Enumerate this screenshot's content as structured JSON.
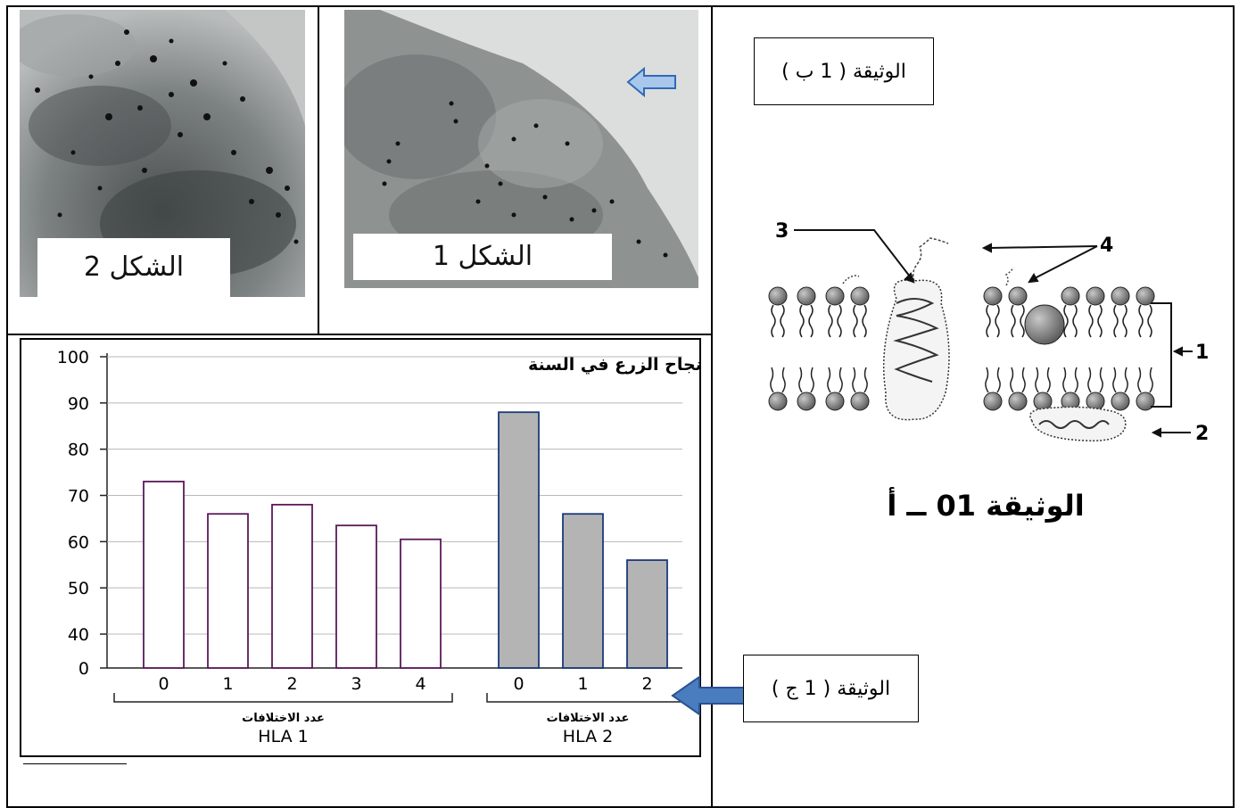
{
  "photos": {
    "fig1_label": "الشكل 1",
    "fig2_label": "الشكل 2"
  },
  "documents": {
    "doc_1b": "الوثيقة ( 1 ب )",
    "doc_1c": "الوثيقة ( 1 ج )",
    "doc_1a": "الوثيقة   01 ــ أ"
  },
  "membrane": {
    "labels": [
      "1",
      "2",
      "3",
      "4"
    ]
  },
  "chart_data": {
    "type": "bar",
    "title": "النسبة المئوية لنجاح الزرع   في السنة",
    "yticks": [
      100,
      90,
      80,
      70,
      60,
      50,
      40,
      0
    ],
    "groups": [
      {
        "name": "HLA 1",
        "axis_label": "عدد الاختلافات",
        "categories": [
          "0",
          "1",
          "2",
          "3",
          "4"
        ],
        "values": [
          73,
          66,
          68,
          63.5,
          60.5
        ],
        "color": "#ffffff",
        "edge_color": "#5a1a5a"
      },
      {
        "name": "HLA 2",
        "axis_label": "عدد الاختلافات",
        "categories": [
          "0",
          "1",
          "2"
        ],
        "values": [
          88,
          66,
          56
        ],
        "color": "#b4b4b4",
        "edge_color": "#1a3a7a"
      }
    ],
    "grid": true
  },
  "colors": {
    "arrow_blue": "#3a6fb5",
    "arrow_fill": "#a9c7ea"
  }
}
